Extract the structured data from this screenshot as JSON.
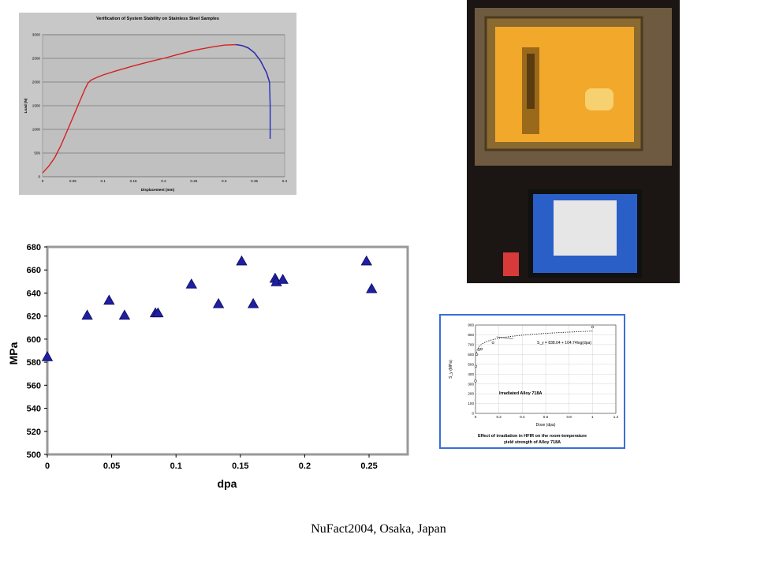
{
  "footer": "NuFact2004, Osaka, Japan",
  "chart_data": [
    {
      "type": "line",
      "title": "Verification of System Stability on Stainless Steel Samples",
      "xlabel": "Displacement (mm)",
      "ylabel": "Load (N)",
      "xlim": [
        0,
        0.4
      ],
      "ylim": [
        0,
        3000
      ],
      "x_ticks": [
        "0",
        "0.05",
        "0.1",
        "0.15",
        "0.2",
        "0.25",
        "0.3",
        "0.35",
        "0.4"
      ],
      "y_ticks": [
        "0",
        "500",
        "1000",
        "1500",
        "2000",
        "2500",
        "3000"
      ],
      "grid": "horizontal",
      "series": [
        {
          "color": "#d62020",
          "x": [
            0,
            0.01,
            0.02,
            0.03,
            0.04,
            0.05,
            0.06,
            0.07,
            0.075,
            0.08,
            0.09,
            0.1,
            0.12,
            0.15,
            0.18,
            0.2,
            0.22,
            0.25,
            0.28,
            0.3,
            0.32,
            0.33,
            0.34,
            0.35,
            0.36,
            0.37,
            0.375
          ],
          "y": [
            80,
            220,
            400,
            650,
            950,
            1250,
            1550,
            1850,
            1980,
            2040,
            2100,
            2150,
            2230,
            2340,
            2440,
            2500,
            2570,
            2670,
            2740,
            2780,
            2790,
            2770,
            2720,
            2620,
            2450,
            2200,
            2000
          ]
        },
        {
          "color": "#2030c0",
          "x": [
            0.32,
            0.33,
            0.34,
            0.35,
            0.36,
            0.37,
            0.375,
            0.376,
            0.376
          ],
          "y": [
            2790,
            2770,
            2720,
            2620,
            2450,
            2200,
            2000,
            1500,
            800
          ]
        }
      ]
    },
    {
      "type": "scatter",
      "xlabel": "dpa",
      "ylabel": "MPa",
      "xlim": [
        0,
        0.28
      ],
      "ylim": [
        500,
        680
      ],
      "x_ticks": [
        "0",
        "0.05",
        "0.1",
        "0.15",
        "0.2",
        "0.25"
      ],
      "y_ticks": [
        "500",
        "520",
        "540",
        "560",
        "580",
        "600",
        "620",
        "640",
        "660",
        "680"
      ],
      "grid": "off",
      "marker_color": "#1f1fa0",
      "points": [
        [
          0.0,
          585
        ],
        [
          0.031,
          621
        ],
        [
          0.048,
          634
        ],
        [
          0.06,
          621
        ],
        [
          0.084,
          623
        ],
        [
          0.086,
          623
        ],
        [
          0.112,
          648
        ],
        [
          0.133,
          631
        ],
        [
          0.151,
          668
        ],
        [
          0.16,
          631
        ],
        [
          0.177,
          653
        ],
        [
          0.178,
          650
        ],
        [
          0.183,
          652
        ],
        [
          0.248,
          668
        ],
        [
          0.252,
          644
        ]
      ]
    },
    {
      "type": "scatter",
      "xlabel": "Dose (dpa)",
      "ylabel": "S_y (MPa)",
      "xlim": [
        0,
        1.2
      ],
      "ylim": [
        0,
        900
      ],
      "x_ticks": [
        "0",
        "0.2",
        "0.4",
        "0.6",
        "0.8",
        "1",
        "1.2"
      ],
      "y_ticks": [
        "0",
        "100",
        "200",
        "300",
        "400",
        "500",
        "600",
        "700",
        "800",
        "900"
      ],
      "grid": "both",
      "annotation": "S_y = 838.04 + 104.74log(dpa)",
      "inset_label": "Irradiated Alloy 718A",
      "caption_line1": "Effect of irradiation in HFIR on the room-temperature",
      "caption_line2": "yield strength of Alloy 718A",
      "points": [
        [
          0,
          330
        ],
        [
          0.003,
          480
        ],
        [
          0.01,
          600
        ],
        [
          0.03,
          650
        ],
        [
          0.05,
          655
        ],
        [
          0.15,
          720
        ],
        [
          1.0,
          880
        ]
      ],
      "fit": {
        "a": 838.04,
        "b": 104.74
      }
    }
  ]
}
